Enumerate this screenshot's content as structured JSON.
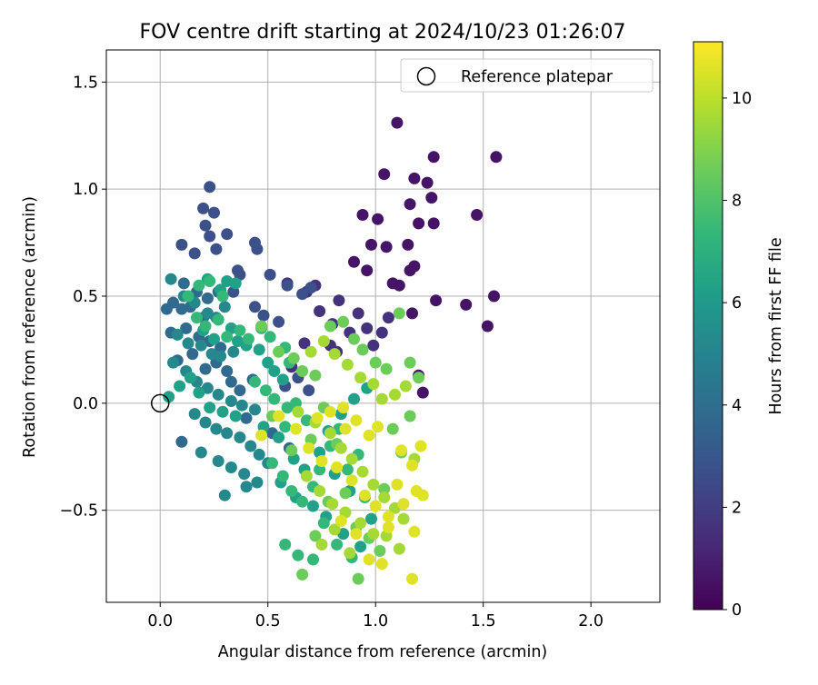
{
  "chart_data": {
    "type": "scatter",
    "title": "FOV centre drift starting at 2024/10/23 01:26:07",
    "xlabel": "Angular distance from reference (arcmin)",
    "ylabel": "Rotation from reference (arcmin)",
    "xlim": [
      -0.25,
      2.32
    ],
    "ylim": [
      -0.93,
      1.65
    ],
    "xticks": [
      0.0,
      0.5,
      1.0,
      1.5,
      2.0
    ],
    "xtick_labels": [
      "0.0",
      "0.5",
      "1.0",
      "1.5",
      "2.0"
    ],
    "yticks": [
      -0.5,
      0.0,
      0.5,
      1.0,
      1.5
    ],
    "ytick_labels": [
      "−0.5",
      "0.0",
      "0.5",
      "1.0",
      "1.5"
    ],
    "grid": true,
    "legend": {
      "placement": "upper right",
      "entries": [
        "Reference platepar"
      ]
    },
    "reference_point": {
      "x": 0.0,
      "y": 0.0,
      "label": "Reference platepar"
    },
    "colorbar": {
      "label": "Hours from first FF file",
      "colormap": "viridis",
      "range": [
        0,
        11.1
      ],
      "ticks": [
        0,
        2,
        4,
        6,
        8,
        10
      ],
      "tick_labels": [
        "0",
        "2",
        "4",
        "6",
        "8",
        "10"
      ]
    },
    "series": [
      {
        "hours": 0.6,
        "points": [
          [
            1.1,
            1.31
          ],
          [
            1.27,
            1.15
          ],
          [
            1.56,
            1.15
          ],
          [
            1.04,
            1.07
          ],
          [
            1.18,
            1.05
          ],
          [
            1.24,
            1.03
          ],
          [
            1.26,
            0.96
          ],
          [
            1.16,
            0.93
          ],
          [
            1.47,
            0.88
          ],
          [
            0.94,
            0.88
          ],
          [
            1.01,
            0.86
          ],
          [
            1.2,
            0.84
          ],
          [
            1.27,
            0.84
          ],
          [
            0.98,
            0.74
          ],
          [
            1.05,
            0.73
          ],
          [
            1.15,
            0.74
          ],
          [
            0.9,
            0.66
          ],
          [
            1.18,
            0.64
          ],
          [
            1.16,
            0.62
          ],
          [
            1.55,
            0.5
          ],
          [
            1.11,
            0.55
          ],
          [
            1.28,
            0.48
          ],
          [
            1.42,
            0.46
          ],
          [
            1.52,
            0.36
          ],
          [
            1.17,
            0.42
          ],
          [
            1.2,
            0.13
          ],
          [
            1.22,
            0.05
          ],
          [
            0.96,
            0.62
          ],
          [
            1.08,
            0.56
          ]
        ]
      },
      {
        "hours": 1.6,
        "points": [
          [
            0.83,
            0.48
          ],
          [
            0.92,
            0.42
          ],
          [
            0.88,
            0.33
          ],
          [
            0.96,
            0.35
          ],
          [
            1.03,
            0.33
          ],
          [
            1.06,
            0.4
          ],
          [
            0.72,
            0.55
          ],
          [
            0.68,
            0.52
          ],
          [
            0.59,
            0.56
          ],
          [
            0.8,
            0.37
          ],
          [
            0.99,
            0.27
          ],
          [
            0.74,
            0.43
          ],
          [
            0.82,
            0.24
          ],
          [
            0.67,
            0.28
          ],
          [
            0.61,
            0.17
          ],
          [
            0.79,
            0.27
          ]
        ]
      },
      {
        "hours": 2.7,
        "points": [
          [
            0.23,
            1.01
          ],
          [
            0.2,
            0.91
          ],
          [
            0.25,
            0.89
          ],
          [
            0.21,
            0.83
          ],
          [
            0.26,
            0.72
          ],
          [
            0.31,
            0.79
          ],
          [
            0.44,
            0.75
          ],
          [
            0.45,
            0.72
          ],
          [
            0.23,
            0.78
          ],
          [
            0.1,
            0.74
          ],
          [
            0.16,
            0.7
          ],
          [
            0.36,
            0.62
          ],
          [
            0.37,
            0.6
          ],
          [
            0.51,
            0.6
          ],
          [
            0.59,
            0.55
          ],
          [
            0.66,
            0.51
          ],
          [
            0.7,
            0.54
          ],
          [
            0.34,
            0.52
          ],
          [
            0.44,
            0.45
          ],
          [
            0.48,
            0.41
          ],
          [
            0.55,
            0.38
          ],
          [
            0.64,
            0.12
          ],
          [
            0.69,
            0.06
          ],
          [
            0.58,
            0.08
          ]
        ]
      },
      {
        "hours": 3.8,
        "points": [
          [
            0.03,
            0.44
          ],
          [
            0.06,
            0.47
          ],
          [
            0.11,
            0.56
          ],
          [
            0.17,
            0.52
          ],
          [
            0.22,
            0.49
          ],
          [
            0.1,
            0.44
          ],
          [
            0.14,
            0.45
          ],
          [
            0.2,
            0.4
          ],
          [
            0.27,
            0.52
          ],
          [
            0.05,
            0.33
          ],
          [
            0.12,
            0.35
          ],
          [
            0.18,
            0.31
          ],
          [
            0.23,
            0.29
          ],
          [
            0.28,
            0.26
          ],
          [
            0.08,
            0.2
          ],
          [
            0.15,
            0.23
          ],
          [
            0.21,
            0.16
          ],
          [
            0.26,
            0.19
          ],
          [
            0.31,
            0.15
          ],
          [
            0.33,
            0.1
          ],
          [
            0.37,
            0.06
          ],
          [
            0.43,
            0.11
          ],
          [
            0.1,
            -0.18
          ],
          [
            0.4,
            -0.07
          ],
          [
            0.52,
            -0.14
          ],
          [
            0.6,
            -0.21
          ]
        ]
      },
      {
        "hours": 5.2,
        "points": [
          [
            0.05,
            0.58
          ],
          [
            0.11,
            0.5
          ],
          [
            0.16,
            0.47
          ],
          [
            0.22,
            0.42
          ],
          [
            0.26,
            0.4
          ],
          [
            0.3,
            0.45
          ],
          [
            0.08,
            0.32
          ],
          [
            0.13,
            0.28
          ],
          [
            0.19,
            0.27
          ],
          [
            0.24,
            0.23
          ],
          [
            0.28,
            0.22
          ],
          [
            0.34,
            0.24
          ],
          [
            0.06,
            0.19
          ],
          [
            0.12,
            0.15
          ],
          [
            0.17,
            0.1
          ],
          [
            0.22,
            0.07
          ],
          [
            0.27,
            0.04
          ],
          [
            0.33,
            0.01
          ],
          [
            0.38,
            -0.01
          ],
          [
            0.44,
            -0.03
          ],
          [
            0.16,
            -0.05
          ],
          [
            0.21,
            -0.09
          ],
          [
            0.26,
            -0.12
          ],
          [
            0.31,
            -0.14
          ],
          [
            0.37,
            -0.16
          ],
          [
            0.42,
            -0.2
          ],
          [
            0.46,
            -0.24
          ],
          [
            0.19,
            -0.23
          ],
          [
            0.27,
            -0.27
          ],
          [
            0.33,
            -0.3
          ],
          [
            0.39,
            -0.33
          ],
          [
            0.45,
            -0.37
          ],
          [
            0.3,
            -0.43
          ],
          [
            0.4,
            -0.39
          ],
          [
            0.5,
            -0.28
          ]
        ]
      },
      {
        "hours": 6.3,
        "points": [
          [
            0.22,
            0.58
          ],
          [
            0.28,
            0.53
          ],
          [
            0.31,
            0.57
          ],
          [
            0.35,
            0.56
          ],
          [
            0.2,
            0.34
          ],
          [
            0.25,
            0.3
          ],
          [
            0.33,
            0.35
          ],
          [
            0.36,
            0.29
          ],
          [
            0.4,
            0.27
          ],
          [
            0.46,
            0.25
          ],
          [
            0.5,
            0.19
          ],
          [
            0.53,
            0.15
          ],
          [
            0.57,
            0.11
          ],
          [
            0.04,
            0.03
          ],
          [
            0.09,
            0.08
          ],
          [
            0.14,
            0.12
          ],
          [
            0.18,
            0.05
          ],
          [
            0.23,
            -0.02
          ],
          [
            0.29,
            -0.04
          ],
          [
            0.35,
            -0.06
          ],
          [
            0.48,
            -0.11
          ],
          [
            0.55,
            -0.16
          ],
          [
            0.62,
            -0.26
          ],
          [
            0.67,
            -0.31
          ],
          [
            0.56,
            -0.37
          ],
          [
            0.63,
            -0.44
          ],
          [
            0.71,
            -0.48
          ],
          [
            0.77,
            -0.53
          ],
          [
            0.85,
            -0.61
          ],
          [
            0.93,
            -0.67
          ],
          [
            0.98,
            -0.54
          ],
          [
            0.88,
            -0.41
          ],
          [
            0.81,
            -0.33
          ],
          [
            0.74,
            -0.23
          ],
          [
            0.78,
            -0.13
          ],
          [
            0.84,
            -0.05
          ],
          [
            0.9,
            0.02
          ],
          [
            0.96,
            0.07
          ]
        ]
      },
      {
        "hours": 7.4,
        "points": [
          [
            0.13,
            0.5
          ],
          [
            0.18,
            0.55
          ],
          [
            0.23,
            0.57
          ],
          [
            0.29,
            0.5
          ],
          [
            0.17,
            0.4
          ],
          [
            0.21,
            0.36
          ],
          [
            0.27,
            0.39
          ],
          [
            0.31,
            0.31
          ],
          [
            0.37,
            0.34
          ],
          [
            0.41,
            0.3
          ],
          [
            0.47,
            0.35
          ],
          [
            0.51,
            0.31
          ],
          [
            0.58,
            0.26
          ],
          [
            0.6,
            0.19
          ],
          [
            0.44,
            0.1
          ],
          [
            0.49,
            0.06
          ],
          [
            0.53,
            0.02
          ],
          [
            0.59,
            -0.02
          ],
          [
            0.63,
            0.0
          ],
          [
            0.68,
            -0.08
          ],
          [
            0.58,
            -0.11
          ],
          [
            0.52,
            -0.28
          ],
          [
            0.57,
            -0.34
          ],
          [
            0.61,
            -0.41
          ],
          [
            0.66,
            -0.46
          ],
          [
            0.71,
            -0.39
          ],
          [
            0.74,
            -0.31
          ],
          [
            0.79,
            -0.2
          ],
          [
            0.83,
            -0.12
          ],
          [
            0.87,
            -0.31
          ],
          [
            0.92,
            -0.24
          ],
          [
            0.95,
            -0.44
          ],
          [
            0.82,
            -0.66
          ],
          [
            0.89,
            -0.72
          ],
          [
            0.58,
            -0.66
          ],
          [
            0.64,
            -0.71
          ],
          [
            0.71,
            -0.73
          ],
          [
            0.76,
            -0.56
          ]
        ]
      },
      {
        "hours": 8.6,
        "points": [
          [
            0.47,
            0.36
          ],
          [
            0.55,
            0.24
          ],
          [
            0.62,
            0.21
          ],
          [
            0.66,
            0.15
          ],
          [
            0.72,
            0.13
          ],
          [
            0.79,
            0.36
          ],
          [
            0.85,
            0.38
          ],
          [
            0.9,
            0.3
          ],
          [
            0.94,
            0.25
          ],
          [
            1.0,
            0.19
          ],
          [
            1.05,
            0.16
          ],
          [
            1.11,
            0.42
          ],
          [
            1.16,
            0.19
          ],
          [
            1.2,
            0.12
          ],
          [
            0.52,
            -0.06
          ],
          [
            0.61,
            -0.22
          ],
          [
            0.7,
            -0.17
          ],
          [
            0.76,
            -0.02
          ],
          [
            0.82,
            -0.19
          ],
          [
            0.86,
            -0.42
          ],
          [
            0.91,
            -0.58
          ],
          [
            0.97,
            -0.63
          ],
          [
            1.02,
            -0.69
          ],
          [
            0.66,
            -0.8
          ],
          [
            0.72,
            -0.62
          ],
          [
            0.78,
            -0.46
          ],
          [
            0.92,
            -0.82
          ],
          [
            1.04,
            -0.4
          ],
          [
            1.08,
            -0.12
          ],
          [
            1.12,
            -0.23
          ],
          [
            1.16,
            -0.06
          ]
        ]
      },
      {
        "hours": 9.6,
        "points": [
          [
            0.7,
            0.24
          ],
          [
            0.76,
            0.29
          ],
          [
            0.81,
            0.23
          ],
          [
            0.87,
            0.18
          ],
          [
            0.93,
            0.12
          ],
          [
            0.99,
            0.09
          ],
          [
            1.03,
            0.02
          ],
          [
            1.09,
            0.04
          ],
          [
            1.14,
            0.08
          ],
          [
            0.64,
            -0.04
          ],
          [
            0.72,
            -0.09
          ],
          [
            0.79,
            -0.14
          ],
          [
            0.84,
            -0.21
          ],
          [
            0.89,
            -0.26
          ],
          [
            0.94,
            -0.32
          ],
          [
            0.99,
            -0.38
          ],
          [
            1.04,
            -0.44
          ],
          [
            1.09,
            -0.49
          ],
          [
            1.13,
            -0.54
          ],
          [
            0.68,
            -0.34
          ],
          [
            0.74,
            -0.41
          ],
          [
            0.8,
            -0.47
          ],
          [
            0.86,
            -0.51
          ],
          [
            0.93,
            -0.56
          ],
          [
            0.99,
            -0.61
          ],
          [
            0.75,
            -0.66
          ],
          [
            0.81,
            -0.59
          ],
          [
            0.88,
            -0.7
          ],
          [
            1.05,
            -0.62
          ],
          [
            1.11,
            -0.68
          ],
          [
            1.18,
            -0.26
          ]
        ]
      },
      {
        "hours": 10.6,
        "points": [
          [
            0.47,
            -0.15
          ],
          [
            0.55,
            -0.06
          ],
          [
            0.63,
            -0.12
          ],
          [
            0.69,
            -0.21
          ],
          [
            0.75,
            -0.27
          ],
          [
            0.82,
            -0.3
          ],
          [
            0.89,
            -0.36
          ],
          [
            0.95,
            -0.43
          ],
          [
            1.0,
            -0.48
          ],
          [
            1.06,
            -0.53
          ],
          [
            1.12,
            -0.22
          ],
          [
            1.17,
            -0.29
          ],
          [
            1.21,
            -0.2
          ],
          [
            0.85,
            -0.02
          ],
          [
            0.91,
            -0.08
          ],
          [
            0.97,
            -0.15
          ],
          [
            1.01,
            -0.11
          ],
          [
            0.73,
            -0.07
          ],
          [
            0.79,
            -0.04
          ],
          [
            0.86,
            -0.12
          ],
          [
            1.1,
            -0.38
          ],
          [
            1.19,
            -0.41
          ],
          [
            1.22,
            -0.43
          ],
          [
            1.13,
            -0.47
          ],
          [
            0.97,
            -0.73
          ],
          [
            1.03,
            -0.75
          ],
          [
            1.18,
            -0.6
          ],
          [
            1.17,
            -0.82
          ],
          [
            1.06,
            -0.58
          ],
          [
            0.91,
            -0.61
          ],
          [
            0.84,
            -0.55
          ]
        ]
      }
    ]
  }
}
